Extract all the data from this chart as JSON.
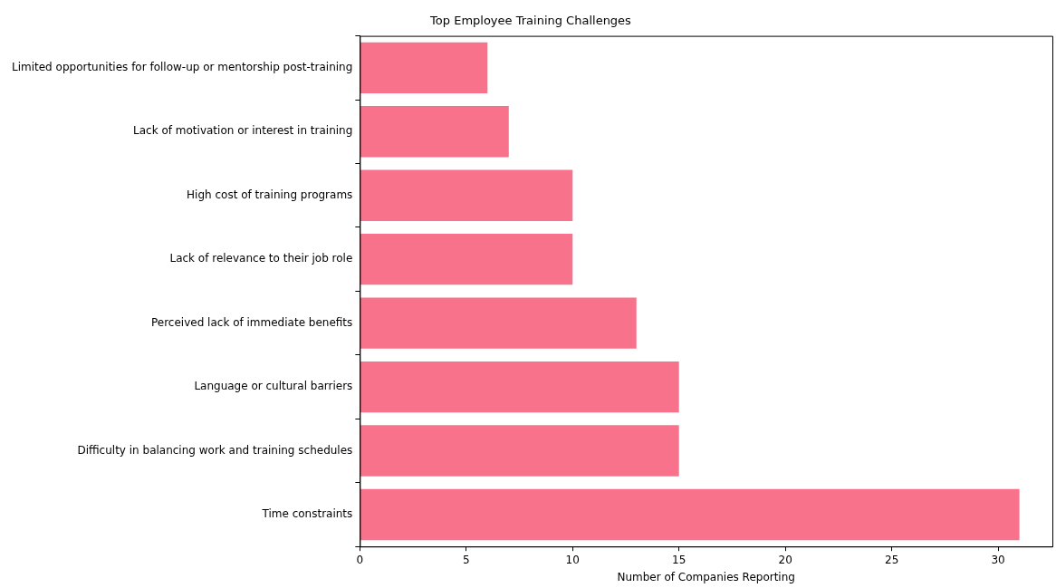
{
  "chart_data": {
    "type": "bar",
    "orientation": "horizontal",
    "title": "Top Employee Training Challenges",
    "xlabel": "Number of Companies Reporting",
    "categories": [
      "Limited opportunities for follow-up or mentorship post-training",
      "Lack of motivation or interest in training",
      "High cost of training programs",
      "Lack of relevance to their job role",
      "Perceived lack of immediate benefits",
      "Language or cultural barriers",
      "Difficulty in balancing work and training schedules",
      "Time constraints"
    ],
    "values": [
      6,
      7,
      10,
      10,
      13,
      15,
      15,
      31
    ],
    "color": "#f7728a",
    "xlim": [
      0,
      32.55
    ],
    "xticks": [
      0,
      5,
      10,
      15,
      20,
      25,
      30
    ],
    "grid": false,
    "legend": false
  }
}
